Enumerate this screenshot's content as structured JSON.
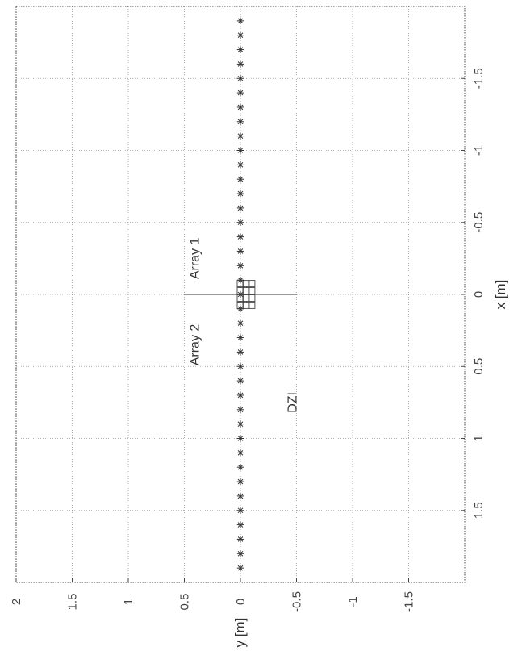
{
  "chart_data": {
    "type": "scatter",
    "orientation": "rotated-90-clockwise",
    "title": "",
    "xlabel": "x [m]",
    "ylabel": "y [m]",
    "xlim": [
      -2,
      2
    ],
    "ylim": [
      -2,
      2
    ],
    "x_ticks": [
      -1.5,
      -1,
      -0.5,
      0,
      0.5,
      1,
      1.5
    ],
    "x_tick_labels": [
      "-1.5",
      "-1",
      "-0.5",
      "0",
      "0.5",
      "1",
      "1.5"
    ],
    "y_ticks": [
      -1.5,
      -1,
      -0.5,
      0,
      0.5,
      1,
      1.5,
      2
    ],
    "y_tick_labels": [
      "-1.5",
      "-1",
      "-0.5",
      "0",
      "0.5",
      "1",
      "1.5",
      "2"
    ],
    "grid": true,
    "series": [
      {
        "marker": "asterisk",
        "x": [
          -1.9,
          -1.8,
          -1.7,
          -1.6,
          -1.5,
          -1.4,
          -1.3,
          -1.2,
          -1.1,
          -1.0,
          -0.9,
          -0.8,
          -0.7,
          -0.6,
          -0.5,
          -0.4,
          -0.3,
          -0.2,
          -0.1,
          0.0,
          0.1,
          0.2,
          0.3,
          0.4,
          0.5,
          0.6,
          0.7,
          0.8,
          0.9,
          1.0,
          1.1,
          1.2,
          1.3,
          1.4,
          1.5,
          1.6,
          1.7,
          1.8,
          1.9
        ],
        "y": [
          0,
          0,
          0,
          0,
          0,
          0,
          0,
          0,
          0,
          0,
          0,
          0,
          0,
          0,
          0,
          0,
          0,
          0,
          0,
          0,
          0,
          0,
          0,
          0,
          0,
          0,
          0,
          0,
          0,
          0,
          0,
          0,
          0,
          0,
          0,
          0,
          0,
          0,
          0
        ]
      },
      {
        "marker": "square",
        "x": [
          -0.075,
          -0.075,
          -0.075,
          -0.025,
          -0.025,
          -0.025,
          0.025,
          0.025,
          0.025,
          0.075,
          0.075,
          0.075
        ],
        "y": [
          0.0,
          -0.05,
          -0.1,
          0.0,
          -0.05,
          -0.1,
          0.0,
          -0.05,
          -0.1,
          0.0,
          -0.05,
          -0.1
        ]
      }
    ],
    "divider_line": {
      "x": [
        0,
        0
      ],
      "y": [
        0.5,
        -0.5
      ]
    },
    "annotations": [
      {
        "text": "Array 1",
        "x": -0.25,
        "y": 0.37
      },
      {
        "text": "Array 2",
        "x": 0.35,
        "y": 0.37
      },
      {
        "text": "DZI",
        "x": 0.75,
        "y": -0.5
      }
    ]
  }
}
